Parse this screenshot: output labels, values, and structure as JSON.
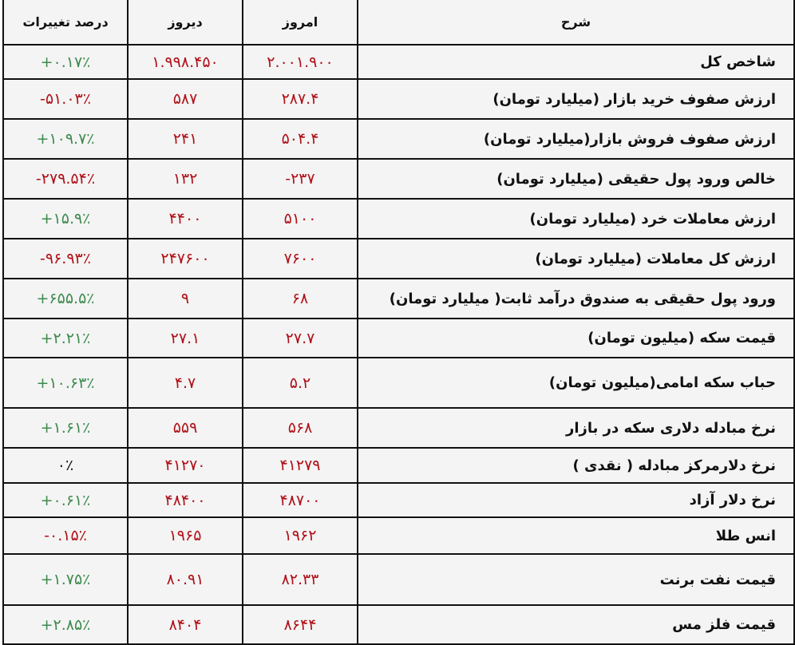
{
  "headers": {
    "change": "درصد تغییرات",
    "yesterday": "دیروز",
    "today": "امروز",
    "description": "شرح"
  },
  "colors": {
    "negative": "#b01018",
    "positive": "#3d8a4e",
    "values": "#b01018"
  },
  "rows": [
    {
      "description": "شاخص کل",
      "today": "۲.۰۰۱.۹۰۰",
      "yesterday": "۱.۹۹۸.۴۵۰",
      "change": "+۰.۱۷٪",
      "trend": "green"
    },
    {
      "description": "ارزش صفوف خرید بازار (میلیارد تومان)",
      "today": "۲۸۷.۴",
      "yesterday": "۵۸۷",
      "change": "-۵۱.۰۳٪",
      "trend": "red"
    },
    {
      "description": "ارزش صفوف فروش بازار(میلیارد تومان)",
      "today": "۵۰۴.۴",
      "yesterday": "۲۴۱",
      "change": "+۱۰۹.۷٪",
      "trend": "green"
    },
    {
      "description": "خالص ورود پول حقیقی (میلیارد تومان)",
      "today": "-۲۳۷",
      "yesterday": "۱۳۲",
      "change": "-۲۷۹.۵۴٪",
      "trend": "red"
    },
    {
      "description": "ارزش معاملات خرد (میلیارد تومان)",
      "today": "۵۱۰۰",
      "yesterday": "۴۴۰۰",
      "change": "+۱۵.۹٪",
      "trend": "green"
    },
    {
      "description": "ارزش کل معاملات (میلیارد تومان)",
      "today": "۷۶۰۰",
      "yesterday": "۲۴۷۶۰۰",
      "change": "-۹۶.۹۳٪",
      "trend": "red"
    },
    {
      "description": "ورود پول حقیقی به صندوق درآمد ثابت( میلیارد تومان)",
      "today": "۶۸",
      "yesterday": "۹",
      "change": "+۶۵۵.۵٪",
      "trend": "green"
    },
    {
      "description": "قیمت سکه (میلیون تومان)",
      "today": "۲۷.۷",
      "yesterday": "۲۷.۱",
      "change": "+۲.۲۱٪",
      "trend": "green"
    },
    {
      "description": "حباب سکه امامی(میلیون تومان)",
      "today": "۵.۲",
      "yesterday": "۴.۷",
      "change": "+۱۰.۶۳٪",
      "trend": "green"
    },
    {
      "description": "نرخ مبادله دلاری سکه در بازار",
      "today": "۵۶۸",
      "yesterday": "۵۵۹",
      "change": "+۱.۶۱٪",
      "trend": "green"
    },
    {
      "description": "نرخ دلارمرکز مبادله ( نقدی )",
      "today": "۴۱۲۷۹",
      "yesterday": "۴۱۲۷۰",
      "change": "۰٪",
      "trend": "black"
    },
    {
      "description": "نرخ دلار آزاد",
      "today": "۴۸۷۰۰",
      "yesterday": "۴۸۴۰۰",
      "change": "+۰.۶۱٪",
      "trend": "green"
    },
    {
      "description": "انس طلا",
      "today": "۱۹۶۲",
      "yesterday": "۱۹۶۵",
      "change": "-۰.۱۵٪",
      "trend": "red"
    },
    {
      "description": "قیمت نفت برنت",
      "today": "۸۲.۳۳",
      "yesterday": "۸۰.۹۱",
      "change": "+۱.۷۵٪",
      "trend": "green"
    },
    {
      "description": "قیمت فلز مس",
      "today": "۸۶۴۴",
      "yesterday": "۸۴۰۴",
      "change": "+۲.۸۵٪",
      "trend": "green"
    }
  ]
}
